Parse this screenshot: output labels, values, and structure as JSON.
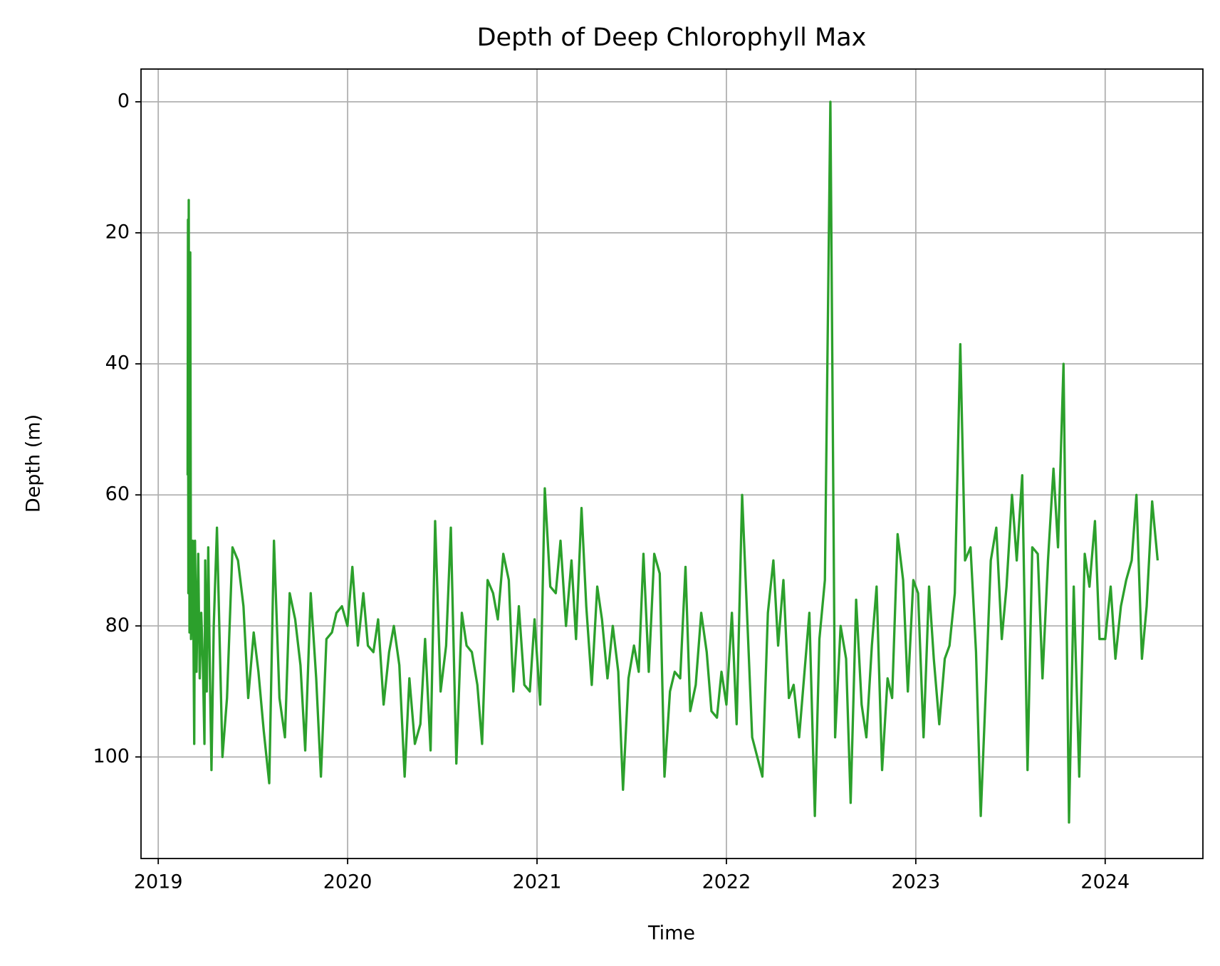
{
  "chart_data": {
    "type": "line",
    "title": "Depth of Deep Chlorophyll Max",
    "x_label": "Time",
    "y_label": "Depth (m)",
    "x": [
      2019.155,
      2019.157,
      2019.159,
      2019.161,
      2019.165,
      2019.169,
      2019.173,
      2019.178,
      2019.182,
      2019.186,
      2019.19,
      2019.194,
      2019.202,
      2019.211,
      2019.219,
      2019.227,
      2019.235,
      2019.244,
      2019.248,
      2019.256,
      2019.264,
      2019.273,
      2019.281,
      2019.293,
      2019.31,
      2019.339,
      2019.363,
      2019.392,
      2019.421,
      2019.45,
      2019.475,
      2019.504,
      2019.529,
      2019.557,
      2019.586,
      2019.611,
      2019.64,
      2019.669,
      2019.694,
      2019.723,
      2019.751,
      2019.776,
      2019.805,
      2019.834,
      2019.859,
      2019.888,
      2019.917,
      2019.941,
      2019.97,
      2019.999,
      2020.025,
      2020.054,
      2020.083,
      2020.107,
      2020.136,
      2020.161,
      2020.19,
      2020.219,
      2020.244,
      2020.273,
      2020.301,
      2020.326,
      2020.355,
      2020.384,
      2020.409,
      2020.438,
      2020.462,
      2020.491,
      2020.52,
      2020.545,
      2020.574,
      2020.603,
      2020.628,
      2020.656,
      2020.685,
      2020.71,
      2020.739,
      2020.768,
      2020.793,
      2020.822,
      2020.851,
      2020.875,
      2020.904,
      2020.933,
      2020.962,
      2020.987,
      2021.017,
      2021.041,
      2021.07,
      2021.099,
      2021.124,
      2021.153,
      2021.182,
      2021.206,
      2021.235,
      2021.26,
      2021.289,
      2021.318,
      2021.343,
      2021.372,
      2021.4,
      2021.429,
      2021.454,
      2021.483,
      2021.512,
      2021.537,
      2021.562,
      2021.59,
      2021.619,
      2021.648,
      2021.673,
      2021.702,
      2021.727,
      2021.756,
      2021.784,
      2021.809,
      2021.838,
      2021.867,
      2021.896,
      2021.921,
      2021.95,
      2021.974,
      2022.0,
      2022.029,
      2022.054,
      2022.083,
      2022.136,
      2022.19,
      2022.219,
      2022.248,
      2022.273,
      2022.301,
      2022.33,
      2022.355,
      2022.384,
      2022.438,
      2022.467,
      2022.491,
      2022.52,
      2022.549,
      2022.574,
      2022.603,
      2022.632,
      2022.656,
      2022.685,
      2022.714,
      2022.739,
      2022.768,
      2022.793,
      2022.822,
      2022.851,
      2022.875,
      2022.904,
      2022.933,
      2022.958,
      2022.987,
      2023.012,
      2023.041,
      2023.07,
      2023.095,
      2023.124,
      2023.153,
      2023.178,
      2023.206,
      2023.235,
      2023.26,
      2023.289,
      2023.318,
      2023.343,
      2023.372,
      2023.396,
      2023.425,
      2023.454,
      2023.479,
      2023.508,
      2023.533,
      2023.562,
      2023.59,
      2023.615,
      2023.644,
      2023.669,
      2023.698,
      2023.727,
      2023.751,
      2023.78,
      2023.809,
      2023.834,
      2023.863,
      2023.892,
      2023.917,
      2023.946,
      2023.97,
      2024.0,
      2024.029,
      2024.054,
      2024.083,
      2024.111,
      2024.14,
      2024.165,
      2024.194,
      2024.219,
      2024.248,
      2024.277
    ],
    "series": [
      {
        "color": "#2ca02c",
        "values": [
          57,
          18,
          75,
          15,
          81,
          23,
          82,
          75,
          67,
          82,
          98,
          67,
          87,
          69,
          88,
          78,
          85,
          98,
          70,
          90,
          68,
          88,
          102,
          80,
          65,
          100,
          91,
          68,
          70,
          77,
          91,
          81,
          87,
          96,
          104,
          67,
          91,
          97,
          75,
          79,
          86,
          99,
          75,
          88,
          103,
          82,
          81,
          78,
          77,
          80,
          71,
          83,
          75,
          83,
          84,
          79,
          92,
          84,
          80,
          86,
          103,
          88,
          98,
          95,
          82,
          99,
          64,
          90,
          83,
          65,
          101,
          78,
          83,
          84,
          89,
          98,
          73,
          75,
          79,
          69,
          73,
          90,
          77,
          89,
          90,
          79,
          92,
          59,
          74,
          75,
          67,
          80,
          70,
          82,
          62,
          77,
          89,
          74,
          79,
          88,
          80,
          87,
          105,
          88,
          83,
          87,
          69,
          87,
          69,
          72,
          103,
          90,
          87,
          88,
          71,
          93,
          89,
          78,
          84,
          93,
          94,
          87,
          92,
          78,
          95,
          60,
          97,
          103,
          78,
          70,
          83,
          73,
          91,
          89,
          97,
          78,
          109,
          82,
          73,
          0,
          97,
          80,
          85,
          107,
          76,
          92,
          97,
          83,
          74,
          102,
          88,
          91,
          66,
          73,
          90,
          73,
          75,
          97,
          74,
          85,
          95,
          85,
          83,
          75,
          37,
          70,
          68,
          84,
          109,
          88,
          70,
          65,
          82,
          74,
          60,
          70,
          57,
          102,
          68,
          69,
          88,
          70,
          56,
          68,
          40,
          110,
          74,
          103,
          69,
          74,
          64,
          82,
          82,
          74,
          85,
          77,
          73,
          70,
          60,
          85,
          77,
          61,
          70
        ]
      }
    ],
    "xlim": [
      2018.909,
      2024.516
    ],
    "xticks": [
      2019,
      2020,
      2021,
      2022,
      2023,
      2024
    ],
    "ylim": [
      115.5,
      -5
    ],
    "yticks": [
      0,
      20,
      40,
      60,
      80,
      100
    ],
    "grid": true
  }
}
